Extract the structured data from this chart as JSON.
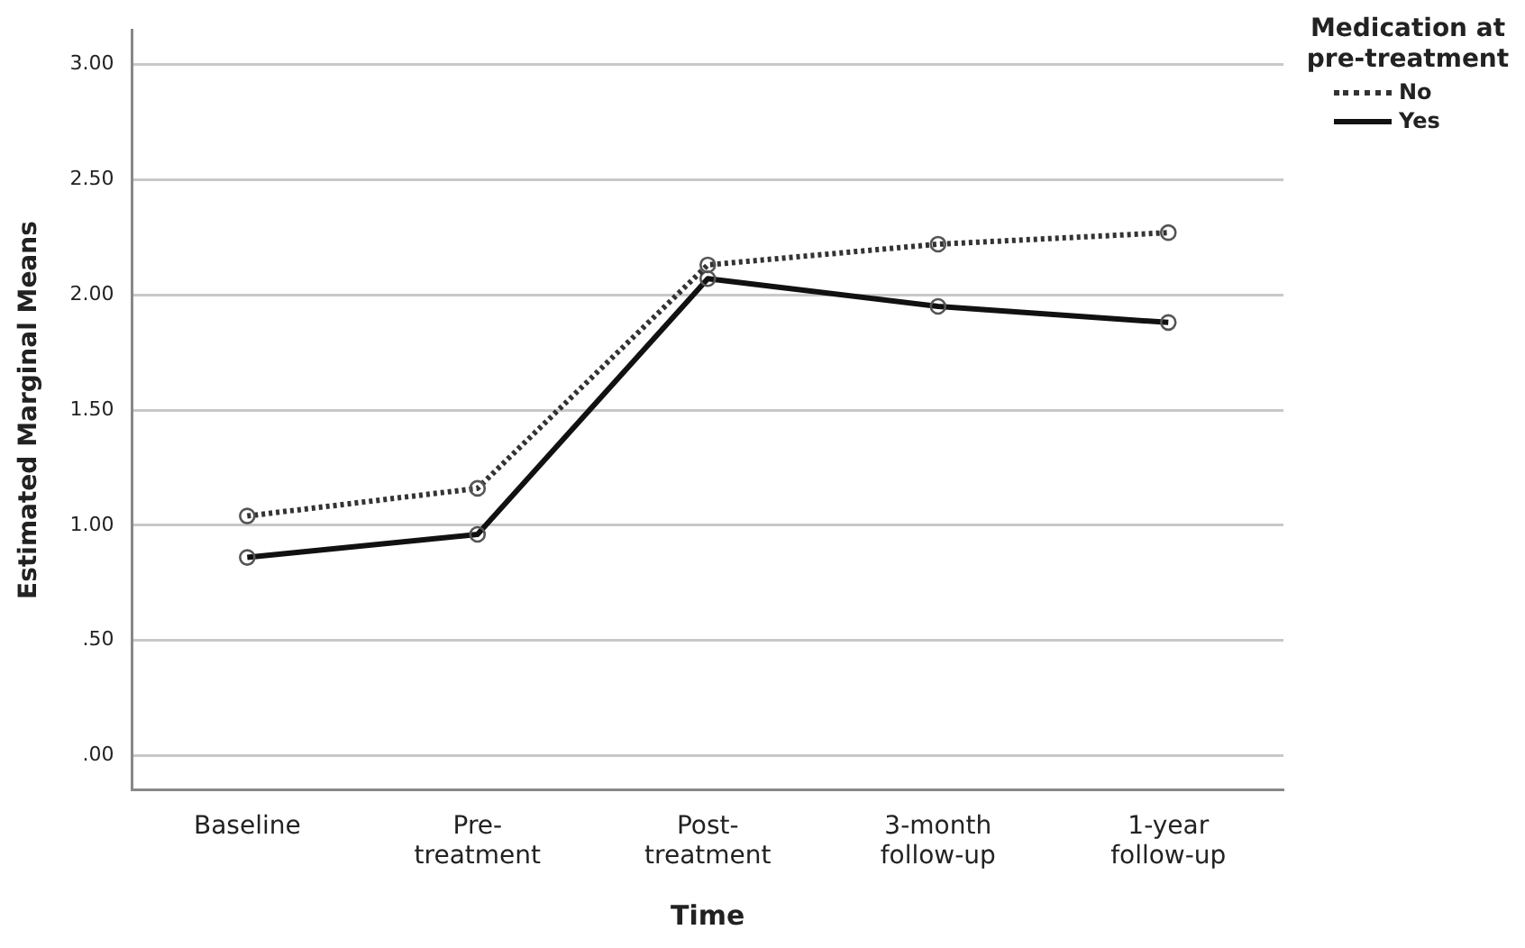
{
  "chart_data": {
    "type": "line",
    "xlabel": "Time",
    "ylabel": "Estimated Marginal Means",
    "legend_title": "Medication at pre-treatment",
    "legend": "top right",
    "grid": "y",
    "marker": "circle",
    "categories": [
      "Baseline",
      "Pre-treatment",
      "Post-treatment",
      "3-month follow-up",
      "1-year follow-up"
    ],
    "ylim": [
      -0.15,
      3.15
    ],
    "yticks": [
      {
        "value": 0,
        "label": ".00"
      },
      {
        "value": 0.5,
        "label": ".50"
      },
      {
        "value": 1,
        "label": "1.00"
      },
      {
        "value": 1.5,
        "label": "1.50"
      },
      {
        "value": 2,
        "label": "2.00"
      },
      {
        "value": 2.5,
        "label": "2.50"
      },
      {
        "value": 3,
        "label": "3.00"
      }
    ],
    "series": [
      {
        "name": "No",
        "color": "#333333",
        "line_style": "dotted",
        "values": [
          1.04,
          1.16,
          2.13,
          2.22,
          2.27
        ]
      },
      {
        "name": "Yes",
        "color": "#111111",
        "line_style": "solid",
        "values": [
          0.86,
          0.96,
          2.07,
          1.95,
          1.88
        ]
      }
    ]
  }
}
